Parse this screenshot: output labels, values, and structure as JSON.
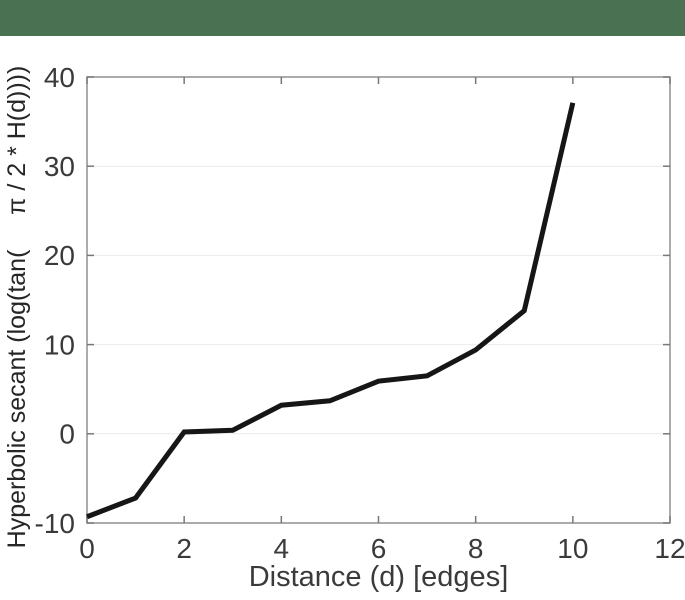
{
  "banner": {
    "color": "#4a7252"
  },
  "chart_data": {
    "type": "line",
    "title": "",
    "xlabel": "Distance (d) [edges]",
    "ylabel": "Hyperbolic secant (log(tan(     π / 2 * H(d))))",
    "x": [
      0,
      1,
      2,
      3,
      4,
      5,
      6,
      7,
      8,
      9,
      10
    ],
    "y": [
      -9.3,
      -7.2,
      0.2,
      0.4,
      3.2,
      3.7,
      5.9,
      6.5,
      9.4,
      13.8,
      37.1
    ],
    "xlim": [
      0,
      12
    ],
    "ylim": [
      -10,
      40
    ],
    "xticks": [
      0,
      2,
      4,
      6,
      8,
      10,
      12
    ],
    "yticks": [
      -10,
      0,
      10,
      20,
      30,
      40
    ],
    "grid": "horizontal-only",
    "legend": "none",
    "line_color": "#161616",
    "line_width": 5,
    "axes_color": "#8f8f8f",
    "tick_color": "#787878",
    "grid_color": "#ebebeb"
  }
}
